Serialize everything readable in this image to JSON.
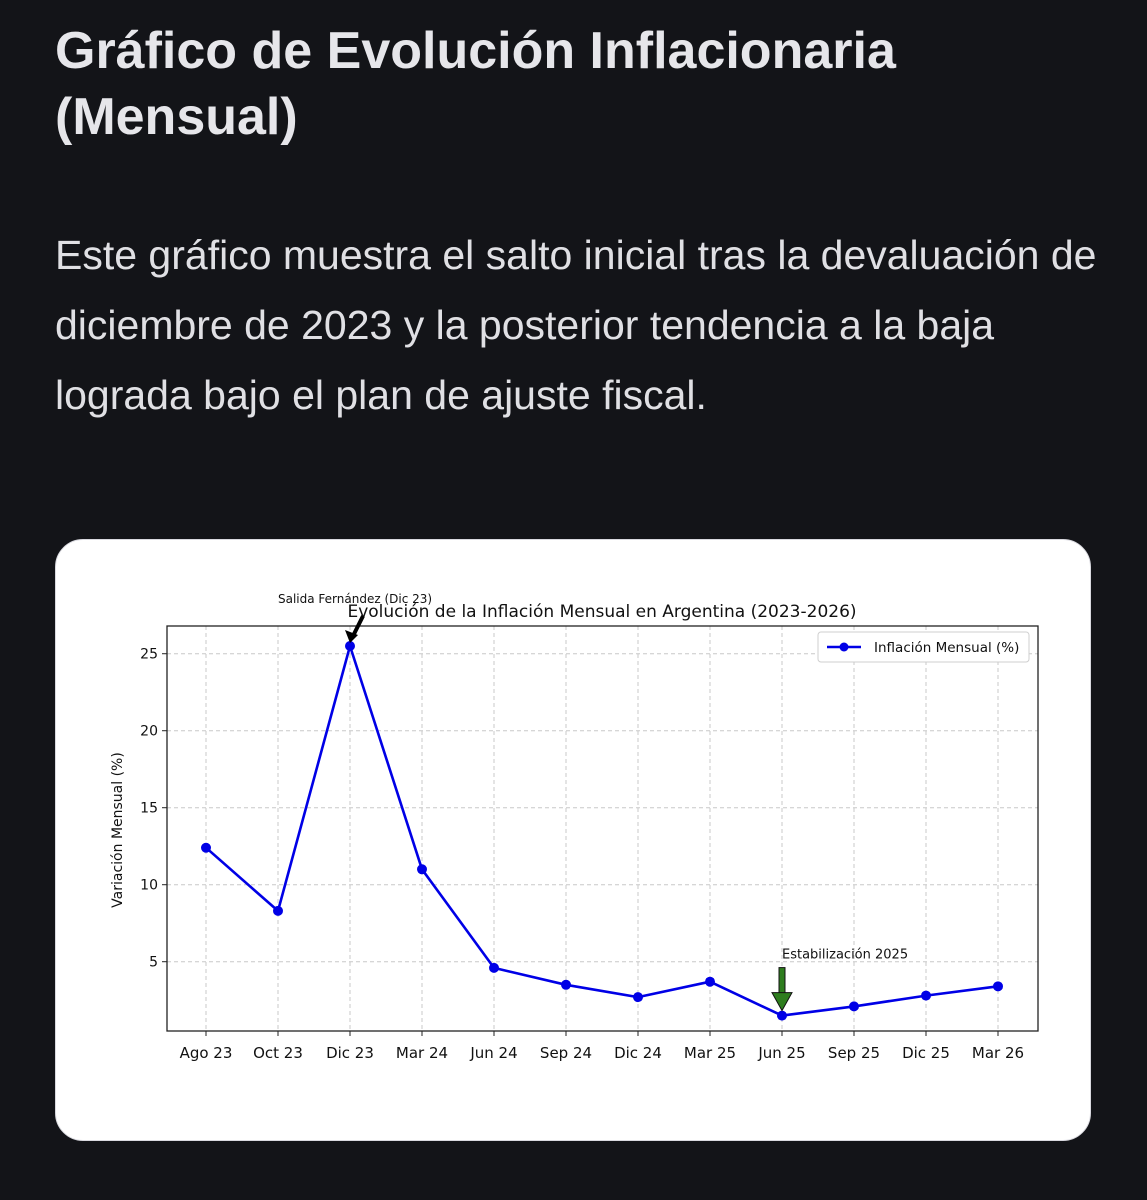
{
  "page": {
    "heading": "Gráfico de Evolución Inflacionaria (Mensual)",
    "paragraph": "Este gráfico muestra el salto inicial tras la devaluación de diciembre de 2023 y la posterior tendencia a la baja lograda bajo el plan de ajuste fiscal."
  },
  "chart_data": {
    "type": "line",
    "title": "Evolución de la Inflación Mensual en Argentina (2023-2026)",
    "xlabel": "",
    "ylabel": "Variación Mensual (%)",
    "categories": [
      "Ago 23",
      "Oct 23",
      "Dic 23",
      "Mar 24",
      "Jun 24",
      "Sep 24",
      "Dic 24",
      "Mar 25",
      "Jun 25",
      "Sep 25",
      "Dic 25",
      "Mar 26"
    ],
    "series": [
      {
        "name": "Inflación Mensual (%)",
        "values": [
          12.4,
          8.3,
          25.5,
          11.0,
          4.6,
          3.5,
          2.7,
          3.7,
          1.5,
          2.1,
          2.8,
          3.4
        ],
        "color": "#0000e6"
      }
    ],
    "ylim": [
      0.5,
      26.8
    ],
    "yticks": [
      5,
      10,
      15,
      20,
      25
    ],
    "grid": true,
    "legend_position": "top-right",
    "annotations": [
      {
        "text": "Salida Fernández (Dic 23)",
        "category": "Dic 23",
        "arrow_color": "#000000"
      },
      {
        "text": "Estabilización 2025",
        "category": "Jun 25",
        "arrow_color": "#2e7d1e"
      }
    ]
  }
}
